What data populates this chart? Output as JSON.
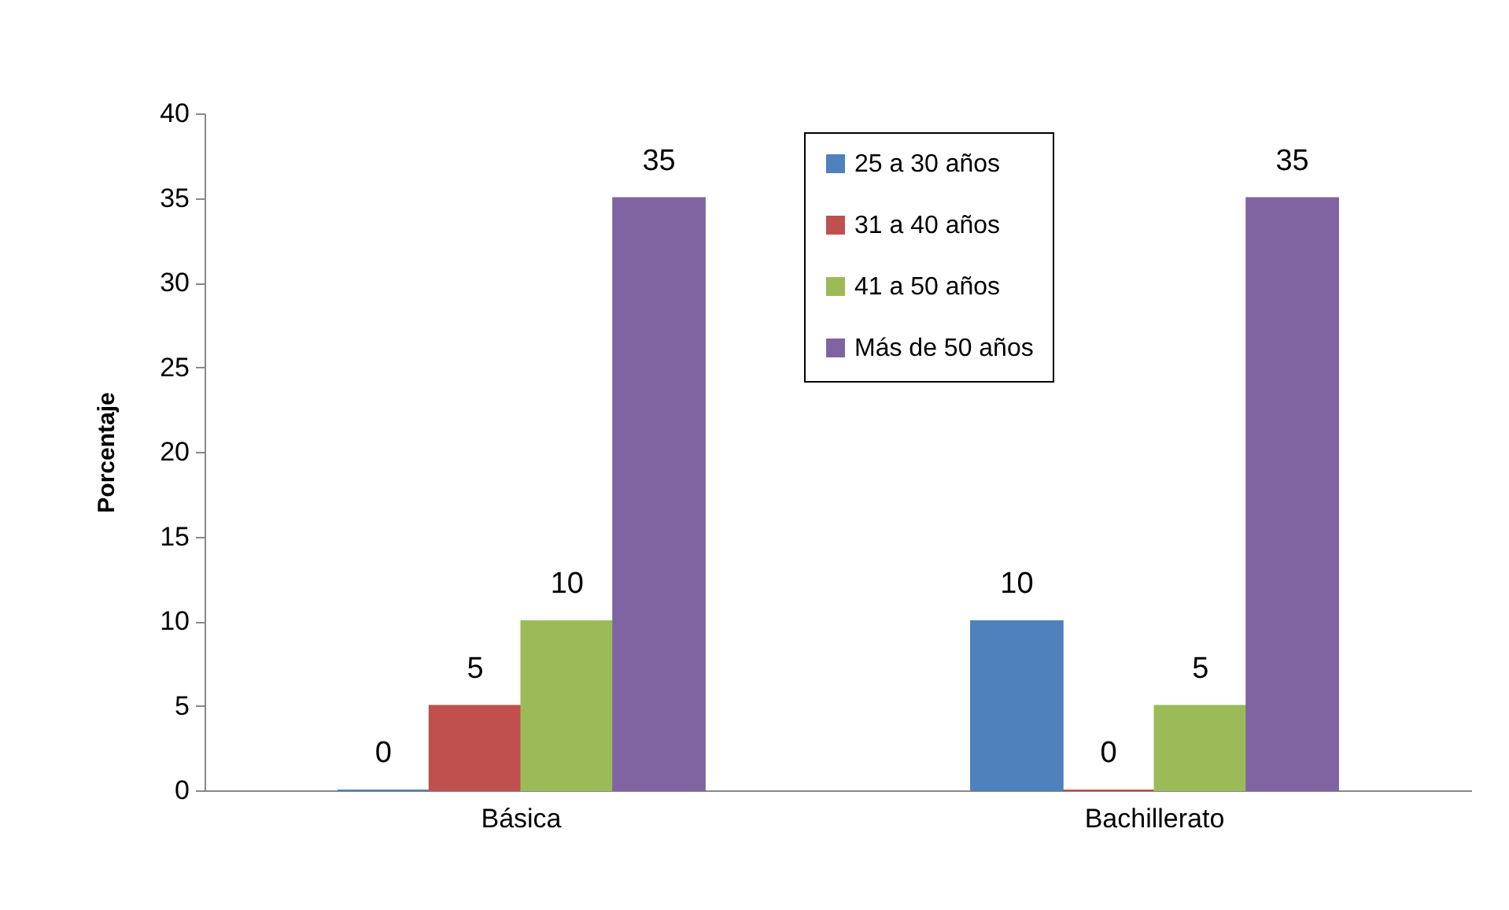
{
  "chart_data": {
    "type": "bar",
    "ylabel": "Porcentaje",
    "categories": [
      "Básica",
      "Bachillerato"
    ],
    "series": [
      {
        "name": "25 a 30 años",
        "color": "#4f81bd",
        "values": [
          0,
          10
        ]
      },
      {
        "name": "31 a 40 años",
        "color": "#c0504d",
        "values": [
          5,
          0
        ]
      },
      {
        "name": "41 a 50 años",
        "color": "#9bbb59",
        "values": [
          10,
          5
        ]
      },
      {
        "name": "Más de 50 años",
        "color": "#8064a2",
        "values": [
          35,
          35
        ]
      }
    ],
    "ylim": [
      0,
      40
    ],
    "yticks": [
      0,
      5,
      10,
      15,
      20,
      25,
      30,
      35,
      40
    ],
    "data_labels": true,
    "legend": "top right",
    "grid": false
  }
}
